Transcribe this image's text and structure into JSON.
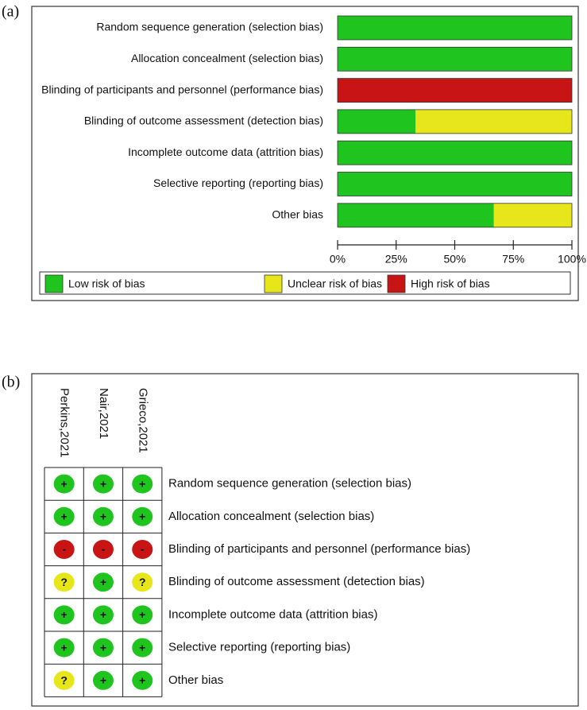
{
  "chart_data": [
    {
      "type": "stacked-barh",
      "label": "(a)",
      "categories": [
        "Random sequence generation (selection bias)",
        "Allocation concealment (selection bias)",
        "Blinding of participants and personnel (performance bias)",
        "Blinding of outcome assessment (detection bias)",
        "Incomplete outcome data (attrition bias)",
        "Selective reporting (reporting bias)",
        "Other bias"
      ],
      "series": [
        {
          "name": "Low risk of bias",
          "color": "#1fc41f",
          "values": [
            100,
            100,
            0,
            33.3,
            100,
            100,
            66.7
          ]
        },
        {
          "name": "Unclear risk of bias",
          "color": "#e6e61a",
          "values": [
            0,
            0,
            0,
            66.7,
            0,
            0,
            33.3
          ]
        },
        {
          "name": "High risk of bias",
          "color": "#c81414",
          "values": [
            0,
            0,
            100,
            0,
            0,
            0,
            0
          ]
        }
      ],
      "xlim": [
        0,
        100
      ],
      "xticks": [
        {
          "value": 0,
          "label": "0%"
        },
        {
          "value": 25,
          "label": "25%"
        },
        {
          "value": 50,
          "label": "50%"
        },
        {
          "value": 75,
          "label": "75%"
        },
        {
          "value": 100,
          "label": "100%"
        }
      ]
    },
    {
      "type": "risk-grid",
      "label": "(b)",
      "studies": [
        "Perkins,2021",
        "Nair,2021",
        "Grieco,2021"
      ],
      "domains": [
        "Random sequence generation (selection bias)",
        "Allocation concealment (selection bias)",
        "Blinding of participants and personnel (performance bias)",
        "Blinding of outcome assessment (detection bias)",
        "Incomplete outcome data (attrition bias)",
        "Selective reporting (reporting bias)",
        "Other bias"
      ],
      "judgments": [
        [
          "+",
          "+",
          "+"
        ],
        [
          "+",
          "+",
          "+"
        ],
        [
          "-",
          "-",
          "-"
        ],
        [
          "?",
          "+",
          "?"
        ],
        [
          "+",
          "+",
          "+"
        ],
        [
          "+",
          "+",
          "+"
        ],
        [
          "?",
          "+",
          "+"
        ]
      ],
      "symbol_colors": {
        "+": "#1fc41f",
        "?": "#e6e61a",
        "-": "#c81414"
      }
    }
  ]
}
